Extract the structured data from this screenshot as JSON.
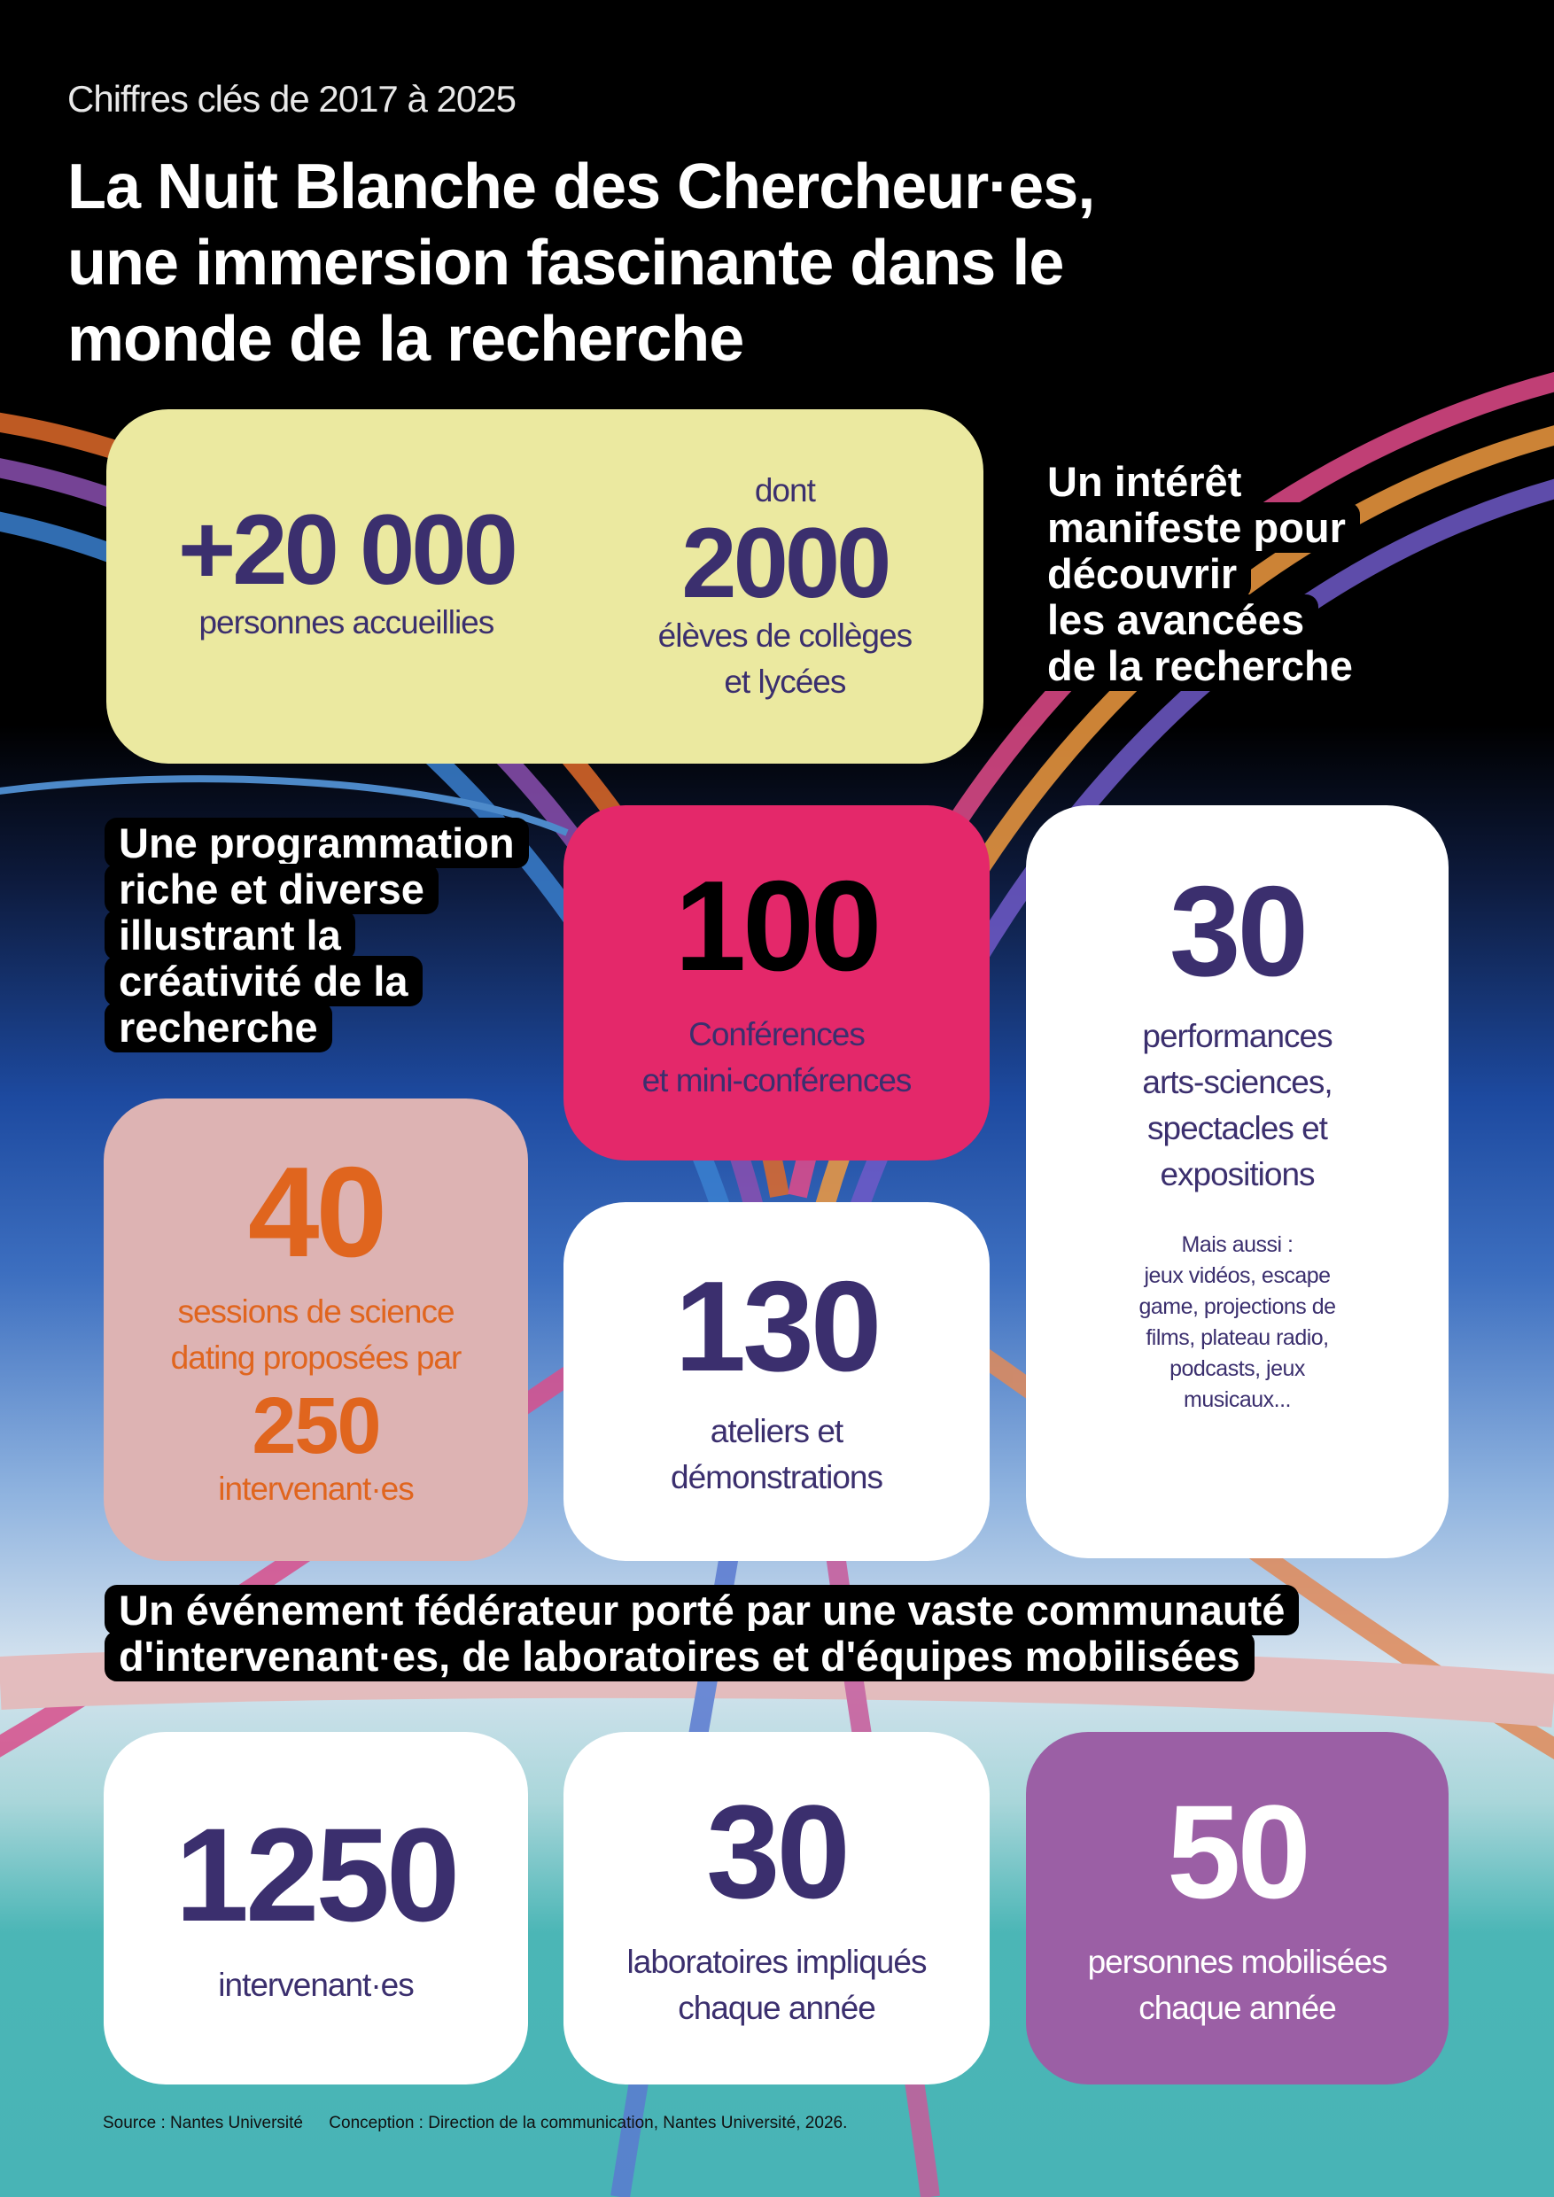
{
  "header": {
    "subtitle": "Chiffres clés de 2017 à 2025",
    "title_lines": [
      "La Nuit Blanche des Chercheur·es,",
      "une immersion fascinante dans le",
      "monde de la recherche"
    ]
  },
  "colors": {
    "navy": "#3b2f6e",
    "yellow": "#ebe9a0",
    "pink": "#e4286a",
    "tan": "#ddb3b3",
    "orange": "#e0651e",
    "purple": "#9b5fa5"
  },
  "audience": {
    "visitors": {
      "value": "+20 000",
      "label": "personnes accueillies"
    },
    "students": {
      "prefix": "dont",
      "value": "2000",
      "label_lines": [
        "élèves de collèges",
        "et lycées"
      ]
    }
  },
  "tags": {
    "interest": [
      "Un intérêt",
      "manifeste pour",
      "découvrir",
      "les avancées",
      "de la recherche"
    ],
    "programme": [
      "Une programmation",
      "riche et diverse",
      "illustrant la",
      "créativité de la",
      "recherche"
    ],
    "community": [
      "Un événement fédérateur porté par une vaste communauté",
      "d'intervenant·es, de laboratoires et d'équipes mobilisées"
    ]
  },
  "conferences": {
    "value": "100",
    "label_lines": [
      "Conférences",
      "et mini-conférences"
    ]
  },
  "performances": {
    "value": "30",
    "label_lines": [
      "performances",
      "arts-sciences,",
      "spectacles et",
      "expositions"
    ],
    "extra_lines": [
      "Mais aussi :",
      "jeux vidéos, escape",
      "game, projections de",
      "films,  plateau radio,",
      "podcasts,  jeux",
      "musicaux..."
    ]
  },
  "dating": {
    "value": "40",
    "label_lines": [
      "sessions de science",
      "dating proposées par"
    ],
    "value2": "250",
    "label2": "intervenant·es"
  },
  "workshops": {
    "value": "130",
    "label_lines": [
      "ateliers et",
      "démonstrations"
    ]
  },
  "bottom": [
    {
      "value": "1250",
      "label_lines": [
        "intervenant·es"
      ]
    },
    {
      "value": "30",
      "label_lines": [
        "laboratoires impliqués",
        "chaque année"
      ]
    },
    {
      "value": "50",
      "label_lines": [
        "personnes mobilisées",
        "chaque année"
      ]
    }
  ],
  "footer": {
    "source": "Source : Nantes Université",
    "credits": "Conception : Direction de la communication, Nantes Université, 2026."
  }
}
